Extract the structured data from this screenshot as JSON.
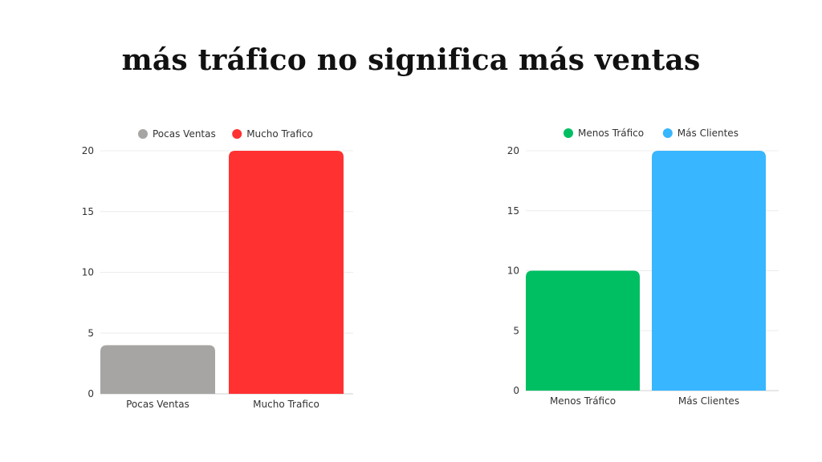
{
  "title": "más tráfico no significa más ventas",
  "chart_data": [
    {
      "type": "bar",
      "categories": [
        "Pocas Ventas",
        "Mucho Trafico"
      ],
      "values": [
        4,
        20
      ],
      "colors": [
        "#a6a5a3",
        "#ff3131"
      ],
      "legend": [
        {
          "label": "Pocas Ventas",
          "color": "#a6a5a3"
        },
        {
          "label": "Mucho Trafico",
          "color": "#ff3131"
        }
      ],
      "yticks": [
        0,
        5,
        10,
        15,
        20
      ],
      "ylim": [
        0,
        20
      ],
      "legend_position": "top",
      "grid": true,
      "xlabel": "",
      "ylabel": ""
    },
    {
      "type": "bar",
      "categories": [
        "Menos Tráfico",
        "Más Clientes"
      ],
      "values": [
        10,
        20
      ],
      "colors": [
        "#00bf63",
        "#38b6ff"
      ],
      "legend": [
        {
          "label": "Menos Tráfico",
          "color": "#00bf63"
        },
        {
          "label": "Más Clientes",
          "color": "#38b6ff"
        }
      ],
      "yticks": [
        0,
        5,
        10,
        15,
        20
      ],
      "ylim": [
        0,
        20
      ],
      "legend_position": "top",
      "grid": true,
      "xlabel": "",
      "ylabel": ""
    }
  ]
}
